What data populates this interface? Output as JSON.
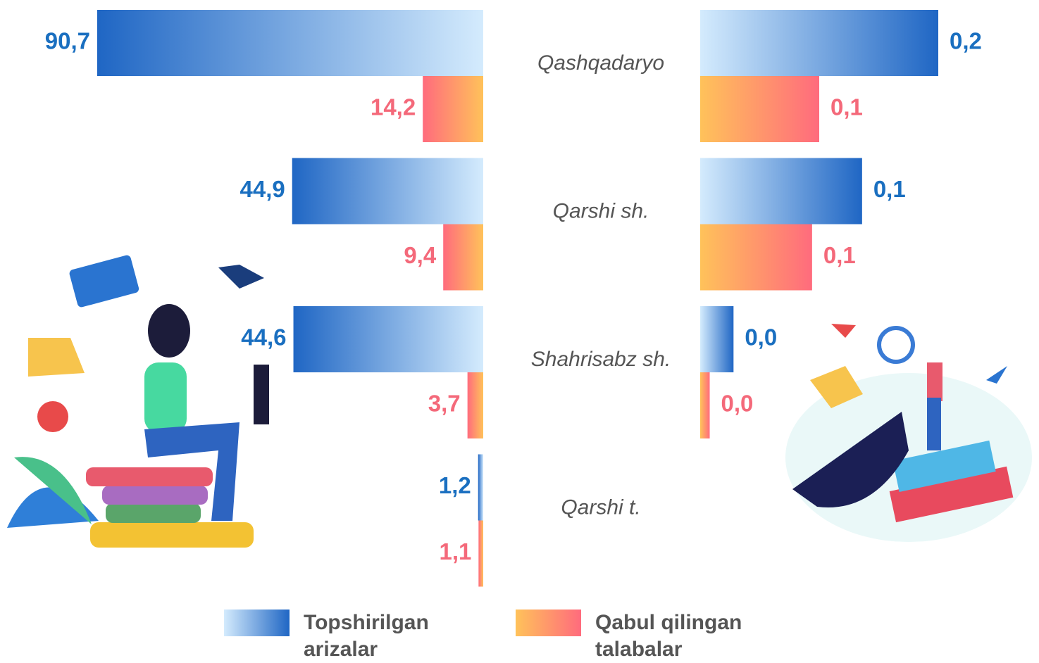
{
  "chart_data": {
    "type": "bar",
    "categories": [
      "Qashqadaryo",
      "Qarshi sh.",
      "Shahrisabz sh.",
      "Qarshi t."
    ],
    "series": [
      {
        "name": "Topshirilgan arizalar",
        "colors": [
          "#1f66c4",
          "#d4ebfd"
        ],
        "label_color": "#1a6fc0",
        "values": [
          90.7,
          44.9,
          44.6,
          1.2
        ],
        "value_labels": [
          "90,7",
          "44,9",
          "44,6",
          "1,2"
        ]
      },
      {
        "name": "Qabul qilingan talabalar",
        "colors": [
          "#ff6b7d",
          "#ffc25a"
        ],
        "label_color": "#f4697a",
        "values": [
          14.2,
          9.4,
          3.7,
          1.1
        ],
        "value_labels": [
          "14,2",
          "9,4",
          "3,7",
          "1,1"
        ]
      }
    ],
    "series_right": [
      {
        "values": [
          0.2,
          0.136,
          0.028,
          null
        ],
        "value_labels": [
          "0,2",
          "0,1",
          "0,0",
          null
        ]
      },
      {
        "values": [
          0.1,
          0.094,
          0.008,
          null
        ],
        "value_labels": [
          "0,1",
          "0,1",
          "0,0",
          null
        ]
      }
    ]
  }
}
